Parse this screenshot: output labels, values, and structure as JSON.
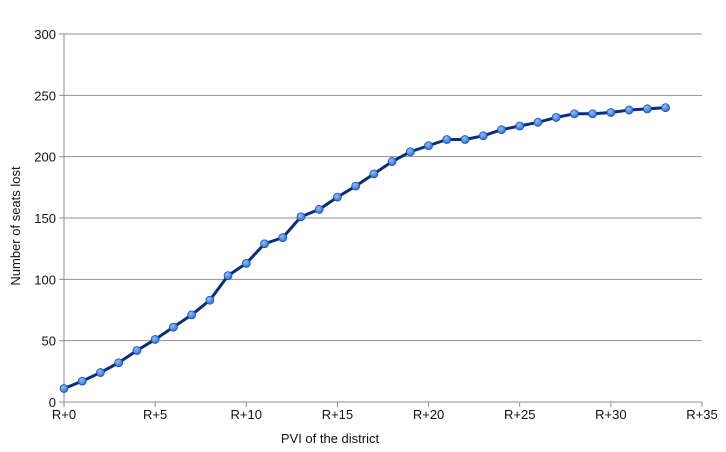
{
  "chart_data": {
    "type": "line",
    "title": "",
    "xlabel": "PVI of the district",
    "ylabel": "Number of seats lost",
    "xlim": [
      0,
      35
    ],
    "ylim": [
      0,
      300
    ],
    "x_ticks": [
      {
        "value": 0,
        "label": "R+0"
      },
      {
        "value": 5,
        "label": "R+5"
      },
      {
        "value": 10,
        "label": "R+10"
      },
      {
        "value": 15,
        "label": "R+15"
      },
      {
        "value": 20,
        "label": "R+20"
      },
      {
        "value": 25,
        "label": "R+25"
      },
      {
        "value": 30,
        "label": "R+30"
      },
      {
        "value": 35,
        "label": "R+35"
      }
    ],
    "y_ticks": [
      0,
      50,
      100,
      150,
      200,
      250,
      300
    ],
    "grid": "horizontal",
    "legend": "none",
    "colors": {
      "line": "#0a2e7a",
      "marker": "#2e6fd6",
      "grid": "#8f8f8f",
      "axis": "#8f8f8f"
    },
    "series": [
      {
        "x": [
          0,
          1,
          2,
          3,
          4,
          5,
          6,
          7,
          8,
          9,
          10,
          11,
          12,
          13,
          14,
          15,
          16,
          17,
          18,
          19,
          20,
          21,
          22,
          23,
          24,
          25,
          26,
          27,
          28,
          29,
          30,
          31,
          32,
          33
        ],
        "values": [
          11,
          17,
          24,
          32,
          42,
          51,
          61,
          71,
          83,
          103,
          113,
          129,
          134,
          151,
          157,
          167,
          176,
          186,
          196,
          204,
          209,
          214,
          214,
          217,
          222,
          225,
          228,
          232,
          235,
          235,
          236,
          238,
          239,
          240
        ]
      }
    ]
  }
}
